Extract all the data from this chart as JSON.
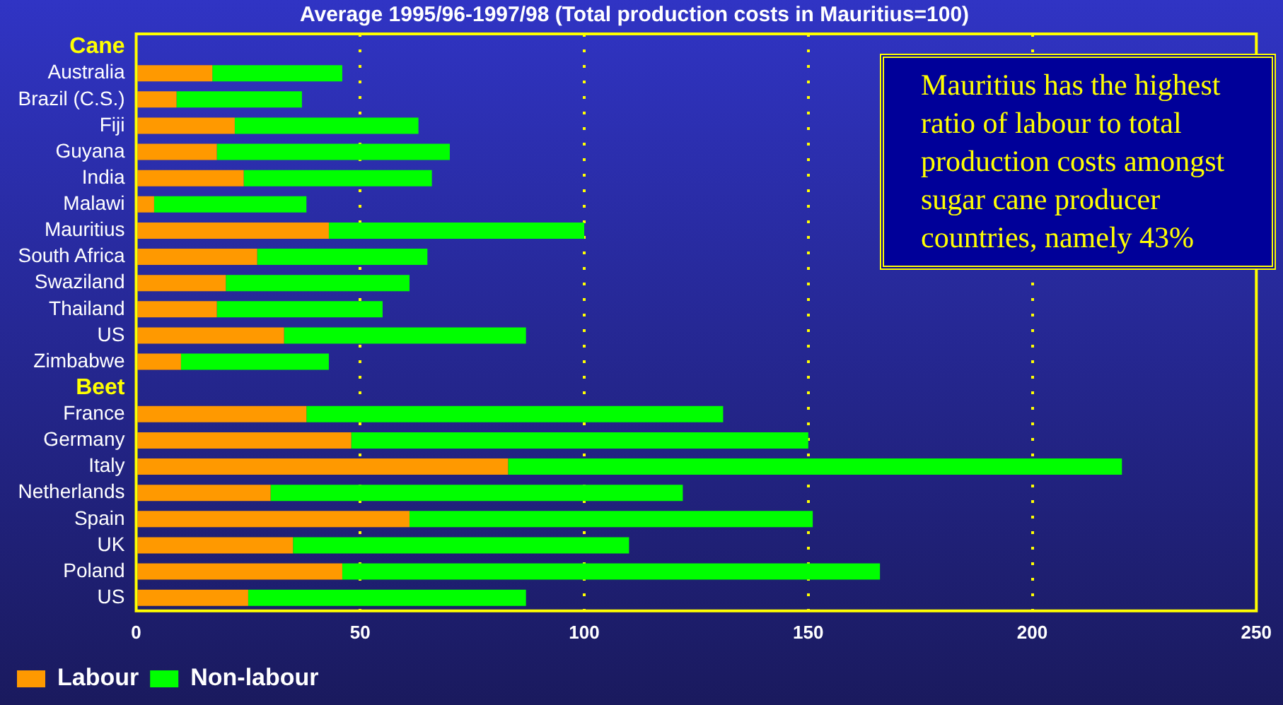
{
  "chart_data": {
    "type": "bar",
    "orientation": "horizontal",
    "stacked": true,
    "title": "Average 1995/96-1997/98 (Total production costs in Mauritius=100)",
    "categories": [
      "Cane",
      "Australia",
      "Brazil (C.S.)",
      "Fiji",
      "Guyana",
      "India",
      "Malawi",
      "Mauritius",
      "South Africa",
      "Swaziland",
      "Thailand",
      "US",
      "Zimbabwe",
      "Beet",
      "France",
      "Germany",
      "Italy",
      "Netherlands",
      "Spain",
      "UK",
      "Poland",
      "US"
    ],
    "series": [
      {
        "name": "Labour",
        "color": "#ff9900",
        "values": [
          null,
          17,
          9,
          22,
          18,
          24,
          4,
          43,
          27,
          20,
          18,
          33,
          10,
          null,
          38,
          48,
          83,
          30,
          61,
          35,
          46,
          25
        ]
      },
      {
        "name": "Non-labour",
        "color": "#00ff00",
        "values": [
          null,
          29,
          28,
          41,
          52,
          42,
          34,
          57,
          38,
          41,
          37,
          54,
          33,
          null,
          93,
          102,
          137,
          92,
          90,
          75,
          120,
          62
        ]
      }
    ],
    "xlim": [
      0,
      250
    ],
    "xticks": [
      0,
      50,
      100,
      150,
      200,
      250
    ],
    "grid": "x",
    "legend": "bottom",
    "annotations": [
      "Mauritius has the highest ratio of labour to total production costs amongst sugar cane producer countries, namely 43%"
    ]
  }
}
